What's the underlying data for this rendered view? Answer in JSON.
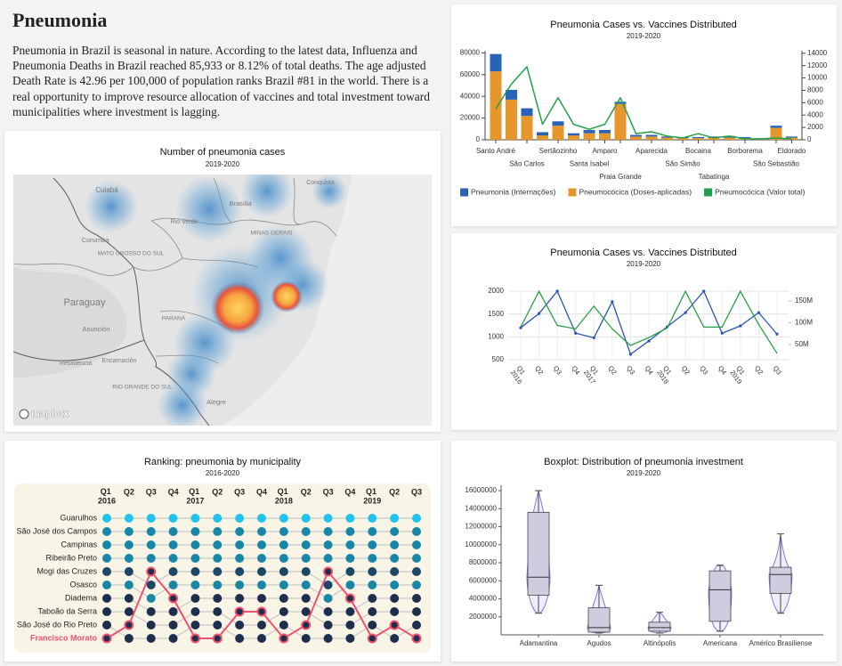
{
  "header": {
    "title": "Pneumonia",
    "text": "Pneumonia in Brazil is seasonal in nature. According to the latest data, Influenza and Pneumonia Deaths in Brazil reached 85,933 or 8.12% of total deaths. The age adjusted Death Rate is 42.96 per 100,000 of population ranks Brazil #81 in the world. There is a real opportunity to improve resource allocation of vaccines and total investment toward municipalities where investment is lagging."
  },
  "map": {
    "title": "Number of pneumonia cases",
    "subtitle": "2019-2020",
    "labels": [
      "Cuiabá",
      "Rio Verde",
      "Corumba",
      "MATO GROSSO DO SUL",
      "Paraguay",
      "Asunción",
      "PARANÁ",
      "Resistencia",
      "Encarnación",
      "RIO GRANDE DO SUL",
      "Alegre",
      "Conquista",
      "MINAS GERAIS",
      "Brasília"
    ],
    "attribution": "mapbox"
  },
  "chart_data": [
    {
      "type": "bar",
      "stacked": true,
      "title": "Pneumonia Cases vs. Vaccines Distributed",
      "subtitle": "2019-2020",
      "categories": [
        "Santo André",
        null,
        "São Carlos",
        null,
        "Sertãozinho",
        null,
        "Santa Isabel",
        "Amparo",
        "Praia Grande",
        null,
        "Aparecida",
        null,
        "São Simão",
        "Bocaina",
        "Tabatinga",
        null,
        "Borborema",
        null,
        "São Sebastião",
        "Eldorado"
      ],
      "series": [
        {
          "name": "Pneumonia (Internações)",
          "color": "#2a62b8",
          "values": [
            16000,
            9000,
            7000,
            3000,
            4000,
            2000,
            3000,
            3000,
            2000,
            1500,
            1500,
            1000,
            1000,
            1000,
            1000,
            1500,
            1000,
            700,
            2000,
            1000
          ]
        },
        {
          "name": "Pneumocócica (Doses-aplicadas)",
          "color": "#e5962c",
          "values": [
            63000,
            37000,
            22000,
            4000,
            13000,
            4000,
            6000,
            6000,
            33000,
            3000,
            3000,
            2000,
            1500,
            1500,
            2000,
            2000,
            1500,
            800,
            11000,
            2000
          ]
        },
        {
          "name": "Pneumocócica (Valor total)",
          "color": "#22a049",
          "type": "line",
          "axis": "y2",
          "values": [
            5000,
            9000,
            11800,
            2500,
            6800,
            2500,
            1700,
            2500,
            6800,
            1000,
            1300,
            600,
            300,
            1000,
            300,
            600,
            150,
            150,
            300,
            150
          ]
        }
      ],
      "ylim": [
        0,
        82000
      ],
      "yticks": [
        0,
        20000,
        40000,
        60000,
        80000
      ],
      "y2lim": [
        0,
        14400
      ],
      "y2ticks": [
        0,
        2000,
        4000,
        6000,
        8000,
        10000,
        12000,
        14000
      ],
      "legend": "bottom"
    },
    {
      "type": "line",
      "title": "Pneumonia Cases vs. Vaccines Distributed",
      "subtitle": "2019-2020",
      "categories": [
        "Q1 2016",
        "Q2",
        "Q3",
        "Q4",
        "Q1 2017",
        "Q2",
        "Q3",
        "Q4",
        "Q1 2018",
        "Q2",
        "Q3",
        "Q4",
        "Q1 2019",
        "Q2",
        "Q3"
      ],
      "series": [
        {
          "color": "#2b55b2",
          "markers": true,
          "values": [
            1200,
            1510,
            2000,
            1080,
            980,
            1770,
            620,
            910,
            1220,
            1530,
            2000,
            1080,
            1240,
            1530,
            1060
          ]
        },
        {
          "color": "#2a9d48",
          "axis": "y2",
          "values": [
            90000000,
            172000000,
            94000000,
            86000000,
            138000000,
            86000000,
            48000000,
            66000000,
            88000000,
            172000000,
            90000000,
            90000000,
            172000000,
            96000000,
            30000000
          ]
        }
      ],
      "ylim": [
        500,
        2000
      ],
      "yticks": [
        500,
        1000,
        1500,
        2000
      ],
      "y2lim": [
        15300000,
        172400000
      ],
      "y2ticks": [
        {
          "value": 50000000,
          "label": "50M"
        },
        {
          "value": 100000000,
          "label": "100M"
        },
        {
          "value": 150000000,
          "label": "150M"
        }
      ],
      "grid": true
    },
    {
      "type": "bump",
      "title": "Ranking: pneumonia by municipality",
      "subtitle": "2016-2020",
      "categories": [
        "Q1 2016",
        "Q2",
        "Q3",
        "Q4",
        "Q1 2017",
        "Q2",
        "Q3",
        "Q4",
        "Q1 2018",
        "Q2",
        "Q3",
        "Q4",
        "Q1 2019",
        "Q2",
        "Q3"
      ],
      "series": [
        {
          "name": "Guarulhos",
          "color": "#1fc3ee",
          "values": [
            1,
            1,
            1,
            1,
            1,
            1,
            1,
            1,
            1,
            1,
            1,
            1,
            1,
            1,
            1
          ]
        },
        {
          "name": "São José dos Campos",
          "color": "#1a86a6",
          "values": [
            2,
            2,
            2,
            2,
            2,
            2,
            2,
            2,
            2,
            2,
            2,
            2,
            2,
            2,
            2
          ]
        },
        {
          "name": "Campinas",
          "color": "#1a86a6",
          "values": [
            3,
            3,
            3,
            3,
            3,
            3,
            3,
            3,
            3,
            3,
            3,
            3,
            3,
            3,
            3
          ]
        },
        {
          "name": "Ribeirão Preto",
          "color": "#1a86a6",
          "values": [
            4,
            4,
            4,
            4,
            4,
            4,
            4,
            4,
            4,
            4,
            4,
            4,
            4,
            4,
            4
          ]
        },
        {
          "name": "Mogi das Cruzes",
          "color": "#1d4766",
          "values": [
            5,
            5,
            6,
            5,
            5,
            5,
            5,
            5,
            5,
            5,
            6,
            5,
            5,
            5,
            5
          ]
        },
        {
          "name": "Osasco",
          "color": "#1a86a6",
          "values": [
            6,
            6,
            7,
            6,
            6,
            6,
            6,
            6,
            6,
            6,
            7,
            6,
            6,
            6,
            6
          ]
        },
        {
          "name": "Diadema",
          "color": "#1e2e4d",
          "values": [
            7,
            7,
            8,
            8,
            7,
            7,
            7,
            7,
            7,
            7,
            8,
            8,
            7,
            7,
            7
          ]
        },
        {
          "name": "Taboão da Serra",
          "color": "#1e2e4d",
          "values": [
            8,
            8,
            9,
            9,
            8,
            8,
            9,
            9,
            8,
            8,
            9,
            9,
            8,
            8,
            8
          ]
        },
        {
          "name": "São José do Rio Preto",
          "color": "#1e2e4d",
          "values": [
            9,
            10,
            10,
            10,
            9,
            9,
            10,
            10,
            9,
            10,
            10,
            10,
            9,
            10,
            9
          ]
        },
        {
          "name": "Francisco Morato",
          "color": "#1e2e4d",
          "highlight_color": "#f0506e",
          "highlight": true,
          "values": [
            10,
            9,
            5,
            7,
            10,
            10,
            8,
            8,
            10,
            9,
            5,
            7,
            10,
            9,
            10
          ]
        }
      ]
    },
    {
      "type": "box",
      "title": "Boxplot: Distribution of pneumonia investment",
      "subtitle": "2019-2020",
      "categories": [
        "Adamantina",
        "Agudos",
        "Altinópolis",
        "Americana",
        "Américo Brasiliense"
      ],
      "values": [
        [
          2400000,
          4400000,
          6400000,
          13600000,
          16000000
        ],
        [
          200000,
          300000,
          800000,
          3000000,
          5500000
        ],
        [
          200000,
          400000,
          800000,
          1400000,
          2500000
        ],
        [
          400000,
          1500000,
          5000000,
          7100000,
          7700000
        ],
        [
          2400000,
          4600000,
          6700000,
          7500000,
          11200000
        ]
      ],
      "color": "#cfcce0",
      "violin_color": "#7a6fd6",
      "ylim": [
        0,
        16600000
      ],
      "yticks": [
        2000000,
        4000000,
        6000000,
        8000000,
        10000000,
        12000000,
        14000000,
        16000000
      ]
    }
  ]
}
